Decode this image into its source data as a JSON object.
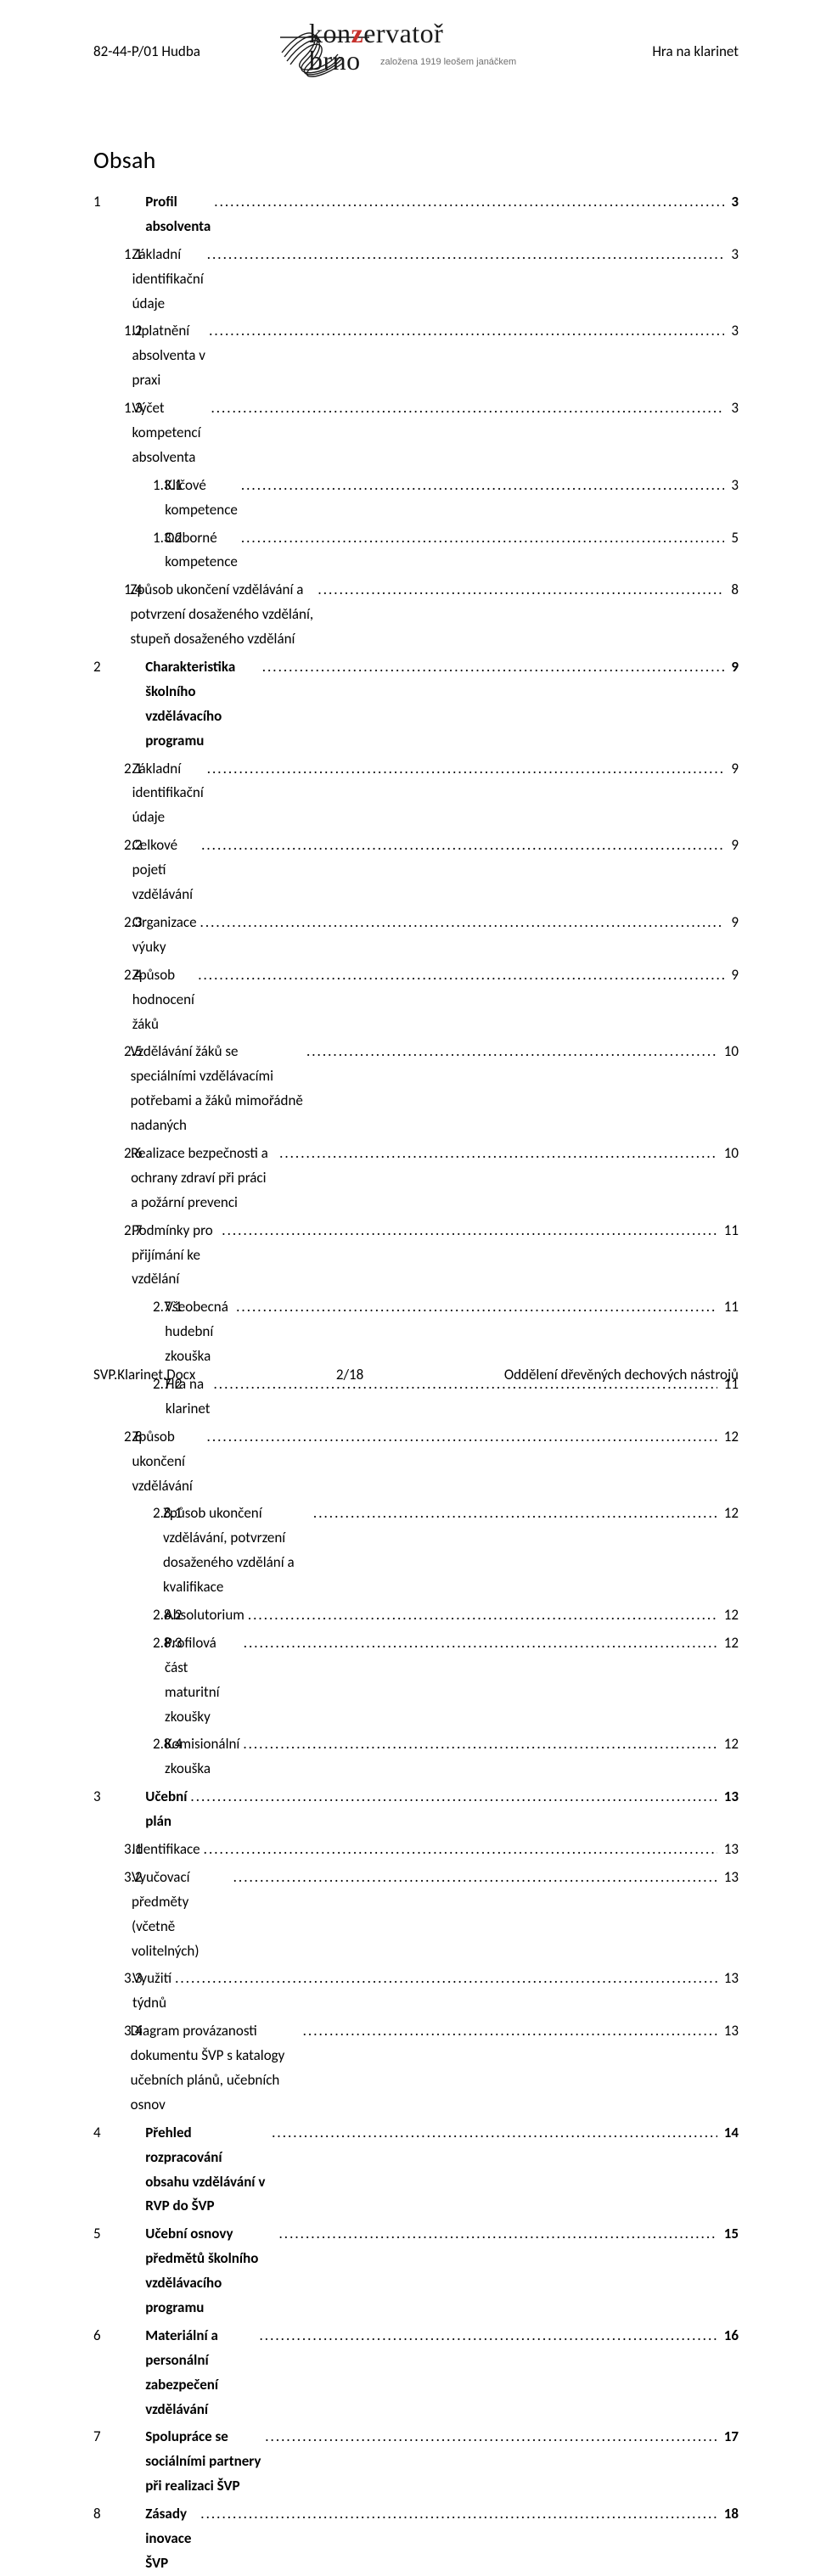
{
  "header": {
    "left": "82-44-P/01 Hudba",
    "right": "Hra na klarinet"
  },
  "logo": {
    "line1_a": "kon",
    "line1_b": "ervatoř",
    "line2": "brno",
    "sub": "založena 1919 leošem janáčkem",
    "color_z": "#c6302b",
    "color_text": "#1a1a1a",
    "color_sub": "#6f6f6f"
  },
  "title": "Obsah",
  "toc": [
    {
      "num": "1",
      "label": "Profil absolventa",
      "page": "3",
      "indent": 0,
      "bold": true
    },
    {
      "num": "1.1",
      "label": "Základní identifikační údaje",
      "page": "3",
      "indent": 1,
      "bold": false
    },
    {
      "num": "1.2",
      "label": "Uplatnění absolventa v praxi",
      "page": "3",
      "indent": 1,
      "bold": false
    },
    {
      "num": "1.3",
      "label": "Výčet kompetencí absolventa",
      "page": "3",
      "indent": 1,
      "bold": false
    },
    {
      "num": "1.3.1",
      "label": "Klíčové kompetence",
      "page": "3",
      "indent": 2,
      "bold": false
    },
    {
      "num": "1.3.2",
      "label": "Odborné kompetence",
      "page": "5",
      "indent": 2,
      "bold": false
    },
    {
      "num": "1.4",
      "label": "Způsob ukončení vzdělávání a potvrzení dosaženého vzdělání, stupeň dosaženého vzdělání",
      "page": "8",
      "indent": 1,
      "bold": false
    },
    {
      "num": "2",
      "label": "Charakteristika školního vzdělávacího programu",
      "page": "9",
      "indent": 0,
      "bold": true
    },
    {
      "num": "2.1",
      "label": "Základní identifikační údaje",
      "page": "9",
      "indent": 1,
      "bold": false
    },
    {
      "num": "2.2",
      "label": "Celkové pojetí vzdělávání",
      "page": "9",
      "indent": 1,
      "bold": false
    },
    {
      "num": "2.3",
      "label": "Organizace výuky",
      "page": "9",
      "indent": 1,
      "bold": false
    },
    {
      "num": "2.4",
      "label": "Způsob hodnocení žáků",
      "page": "9",
      "indent": 1,
      "bold": false
    },
    {
      "num": "2.5",
      "label": "Vzdělávání žáků se speciálními vzdělávacími potřebami a žáků mimořádně nadaných",
      "page": "10",
      "indent": 1,
      "bold": false
    },
    {
      "num": "2.6",
      "label": "Realizace bezpečnosti a ochrany zdraví při práci a požární prevenci",
      "page": "10",
      "indent": 1,
      "bold": false
    },
    {
      "num": "2.7",
      "label": "Podmínky pro přijímání ke vzdělání",
      "page": "11",
      "indent": 1,
      "bold": false
    },
    {
      "num": "2.7.1",
      "label": "Všeobecná hudební zkouška",
      "page": "11",
      "indent": 2,
      "bold": false
    },
    {
      "num": "2.7.2",
      "label": "Hra na klarinet",
      "page": "11",
      "indent": 2,
      "bold": false
    },
    {
      "num": "2.8",
      "label": "Způsob ukončení vzdělávání",
      "page": "12",
      "indent": 1,
      "bold": false
    },
    {
      "num": "2.8.1",
      "label": "Způsob ukončení vzdělávání, potvrzení dosaženého vzdělání a kvalifikace",
      "page": "12",
      "indent": 2,
      "bold": false
    },
    {
      "num": "2.8.2",
      "label": "Absolutorium",
      "page": "12",
      "indent": 2,
      "bold": false
    },
    {
      "num": "2.8.3",
      "label": "Profilová část maturitní zkoušky",
      "page": "12",
      "indent": 2,
      "bold": false
    },
    {
      "num": "2.8.4",
      "label": "Komisionální zkouška",
      "page": "12",
      "indent": 2,
      "bold": false
    },
    {
      "num": "3",
      "label": "Učební plán",
      "page": "13",
      "indent": 0,
      "bold": true
    },
    {
      "num": "3.1",
      "label": "Identifikace",
      "page": "13",
      "indent": 1,
      "bold": false
    },
    {
      "num": "3.2",
      "label": "Vyučovací předměty (včetně volitelných)",
      "page": "13",
      "indent": 1,
      "bold": false
    },
    {
      "num": "3.3",
      "label": "Využití týdnů",
      "page": "13",
      "indent": 1,
      "bold": false
    },
    {
      "num": "3.4",
      "label": "Diagram provázanosti dokumentu ŠVP s katalogy učebních plánů, učebních osnov",
      "page": "13",
      "indent": 1,
      "bold": false
    },
    {
      "num": "4",
      "label": "Přehled rozpracování obsahu vzdělávání v RVP do ŠVP",
      "page": "14",
      "indent": 0,
      "bold": true
    },
    {
      "num": "5",
      "label": "Učební osnovy předmětů školního vzdělávacího programu",
      "page": "15",
      "indent": 0,
      "bold": true
    },
    {
      "num": "6",
      "label": "Materiální a personální zabezpečení vzdělávání",
      "page": "16",
      "indent": 0,
      "bold": true
    },
    {
      "num": "7",
      "label": "Spolupráce se sociálními partnery při realizaci ŠVP",
      "page": "17",
      "indent": 0,
      "bold": true
    },
    {
      "num": "8",
      "label": "Zásady inovace ŠVP",
      "page": "18",
      "indent": 0,
      "bold": true
    }
  ],
  "footer": {
    "left": "SVP.Klarinet.Docx",
    "center": "2/18",
    "right": "Oddělení dřevěných dechových nástrojů"
  }
}
